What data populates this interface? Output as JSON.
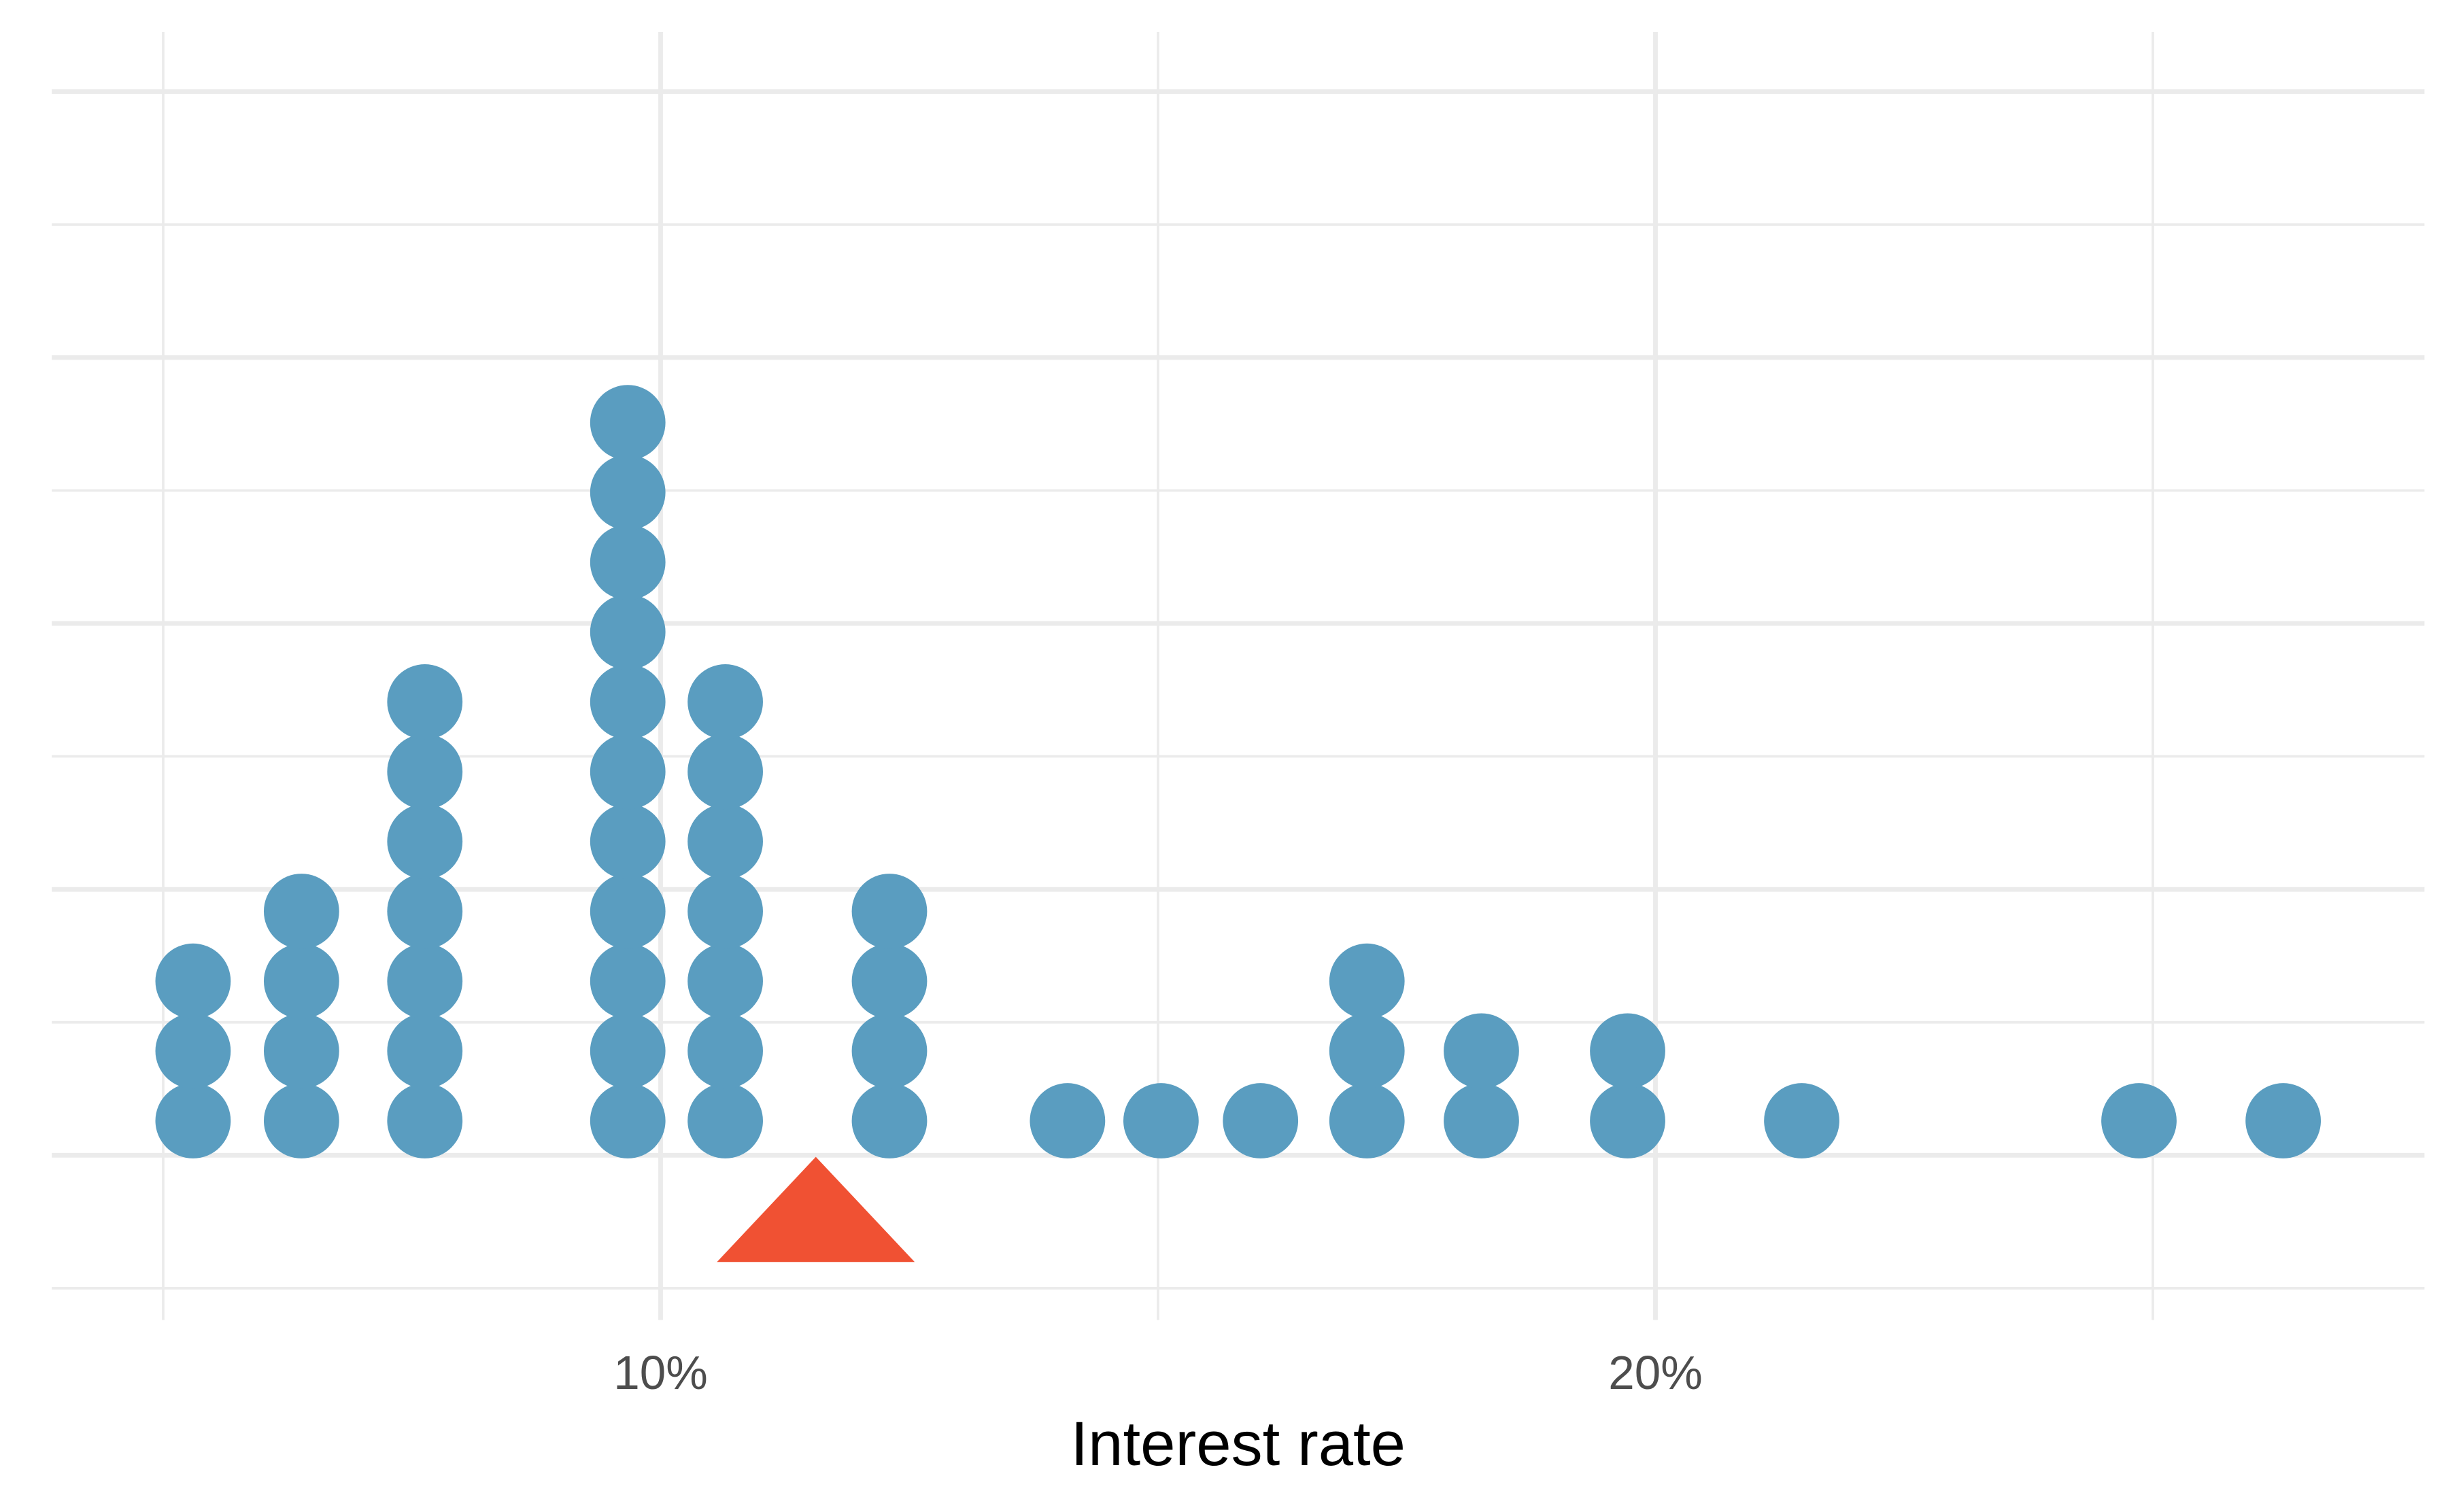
{
  "chart_data": {
    "type": "dotplot",
    "x_label": "Interest rate",
    "x": [
      5.3,
      6.39,
      7.63,
      9.67,
      10.65,
      12.3,
      14.09,
      15.03,
      16.03,
      17.1,
      18.25,
      19.72,
      21.47,
      24.86,
      26.31
    ],
    "counts": [
      3,
      4,
      7,
      11,
      7,
      4,
      1,
      1,
      1,
      3,
      2,
      2,
      1,
      1,
      1
    ],
    "color": "#5A9DC0",
    "mean": 11.56,
    "mean_color": "#F05133",
    "xlim": [
      3.88,
      27.73
    ],
    "xticks": [
      {
        "value": 10,
        "label": "10%"
      },
      {
        "value": 20,
        "label": "20%"
      }
    ],
    "minor_xticks": [
      5,
      15,
      25
    ],
    "grid": true
  }
}
